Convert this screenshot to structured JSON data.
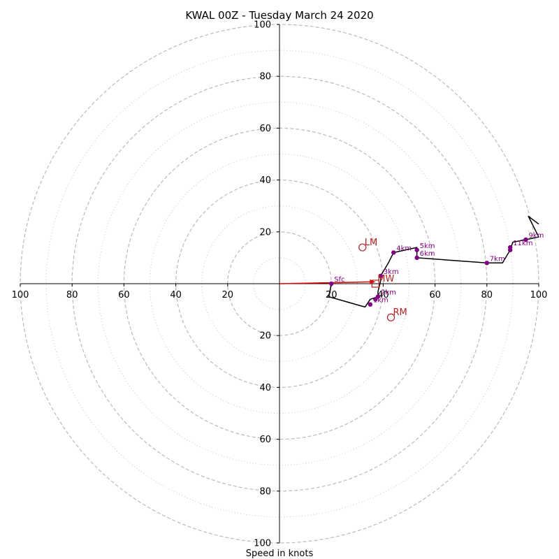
{
  "chart_data": {
    "type": "hodograph",
    "title": "KWAL 00Z - Tuesday March 24 2020",
    "xlabel": "Speed in knots",
    "ring_max": 100,
    "dashed_rings": [
      20,
      40,
      60,
      80,
      100
    ],
    "dotted_rings": [
      10,
      30,
      50,
      70,
      90
    ],
    "x_axis": {
      "range": [
        -100,
        100
      ],
      "ticks": [
        {
          "value": -100,
          "label": "100"
        },
        {
          "value": -80,
          "label": "80"
        },
        {
          "value": -60,
          "label": "60"
        },
        {
          "value": -40,
          "label": "40"
        },
        {
          "value": -20,
          "label": "20"
        },
        {
          "value": 20,
          "label": "20"
        },
        {
          "value": 40,
          "label": "40"
        },
        {
          "value": 60,
          "label": "60"
        },
        {
          "value": 80,
          "label": "80"
        },
        {
          "value": 100,
          "label": "100"
        }
      ]
    },
    "y_axis": {
      "range": [
        -100,
        100
      ],
      "ticks": [
        {
          "value": 100,
          "label": "100"
        },
        {
          "value": 80,
          "label": "80"
        },
        {
          "value": 60,
          "label": "60"
        },
        {
          "value": 40,
          "label": "40"
        },
        {
          "value": 20,
          "label": "20"
        },
        {
          "value": -20,
          "label": "20"
        },
        {
          "value": -40,
          "label": "40"
        },
        {
          "value": -60,
          "label": "60"
        },
        {
          "value": -80,
          "label": "80"
        },
        {
          "value": -100,
          "label": "100"
        }
      ]
    },
    "trace": [
      [
        20,
        0
      ],
      [
        19,
        -5
      ],
      [
        33,
        -9
      ],
      [
        35,
        -6
      ],
      [
        38,
        -5
      ],
      [
        38,
        -3
      ],
      [
        39,
        1
      ],
      [
        39,
        3
      ],
      [
        42,
        8
      ],
      [
        44,
        12
      ],
      [
        53,
        14
      ],
      [
        53,
        10
      ],
      [
        80,
        8
      ],
      [
        86,
        8
      ],
      [
        89,
        13
      ],
      [
        90,
        16
      ],
      [
        95,
        17
      ],
      [
        100,
        18
      ],
      [
        96,
        26
      ],
      [
        100,
        23
      ]
    ],
    "height_markers": [
      {
        "label": "Sfc",
        "u": 20,
        "v": 0
      },
      {
        "label": "1km",
        "u": 35,
        "v": -8
      },
      {
        "label": "",
        "u": 37,
        "v": -6
      },
      {
        "label": "2km",
        "u": 38,
        "v": -5
      },
      {
        "label": "3km",
        "u": 39,
        "v": 3
      },
      {
        "label": "4km",
        "u": 44,
        "v": 12
      },
      {
        "label": "5km",
        "u": 53,
        "v": 13
      },
      {
        "label": "6km",
        "u": 53,
        "v": 10
      },
      {
        "label": "7km",
        "u": 80,
        "v": 8
      },
      {
        "label": "",
        "u": 89,
        "v": 13
      },
      {
        "label": "11km",
        "u": 89,
        "v": 14
      },
      {
        "label": "9km",
        "u": 95,
        "v": 17
      }
    ],
    "storm_motion": [
      {
        "label": "LM",
        "u": 32,
        "v": 14
      },
      {
        "label": "RM",
        "u": 43,
        "v": -13
      },
      {
        "label": "MW",
        "u": 37,
        "v": 0
      }
    ],
    "mean_wind_vector": {
      "from": [
        0,
        0
      ],
      "to": [
        37,
        0.7
      ]
    },
    "colors": {
      "trace": "#000000",
      "height_marker": "#800080",
      "storm_motion": "#b22222",
      "vector": "#e00000",
      "dashed_ring": "#bbbbbb",
      "dotted_ring": "#cccccc"
    }
  }
}
